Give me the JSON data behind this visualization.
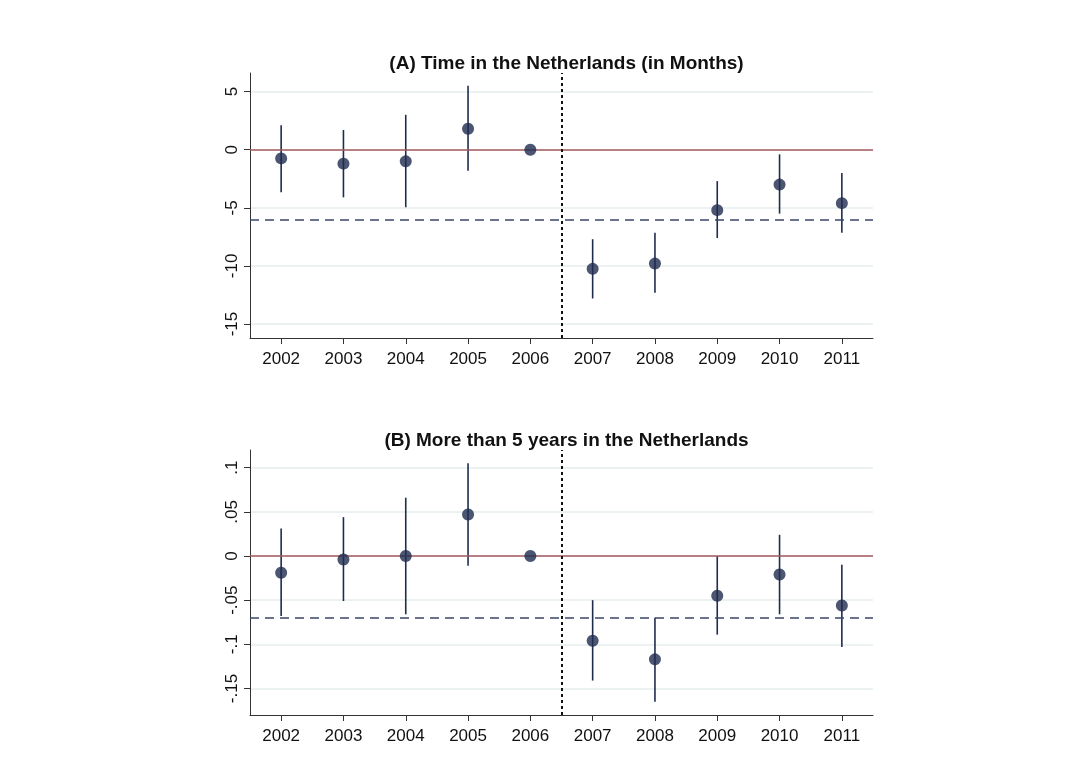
{
  "chart_data": [
    {
      "type": "scatter",
      "title": "(A) Time in the Netherlands (in Months)",
      "x": [
        2002,
        2003,
        2004,
        2005,
        2006,
        2007,
        2008,
        2009,
        2010,
        2011
      ],
      "values": [
        -0.75,
        -1.2,
        -1.0,
        1.8,
        0,
        -10.25,
        -9.8,
        -5.2,
        -3.0,
        -4.6
      ],
      "errors": [
        [
          -3.65,
          2.1
        ],
        [
          -4.1,
          1.7
        ],
        [
          -4.95,
          3.0
        ],
        [
          -1.8,
          5.5
        ],
        null,
        [
          -12.8,
          -7.7
        ],
        [
          -12.3,
          -7.15
        ],
        [
          -7.6,
          -2.7
        ],
        [
          -5.5,
          -0.4
        ],
        [
          -7.15,
          -2.0
        ]
      ],
      "color": "#1f2c4f",
      "marker": "circle",
      "xlim": [
        2001.5,
        2011.5
      ],
      "xticks": [
        2002,
        2003,
        2004,
        2005,
        2006,
        2007,
        2008,
        2009,
        2010,
        2011
      ],
      "ylim": [
        -16.2,
        6.6
      ],
      "yticks": [
        -15,
        -10,
        -5,
        0,
        5
      ],
      "grid": "y",
      "ref_lines": [
        {
          "axis": "y",
          "value": 0,
          "color": "#a55a5f",
          "line_style": "solid"
        },
        {
          "axis": "y",
          "value": -6,
          "color": "#3b4669",
          "line_style": "dashed"
        },
        {
          "axis": "x",
          "value": 2006.5,
          "color": "#111111",
          "line_style": "dotted"
        }
      ]
    },
    {
      "type": "scatter",
      "title": "(B) More than 5 years in the Netherlands",
      "x": [
        2002,
        2003,
        2004,
        2005,
        2006,
        2007,
        2008,
        2009,
        2010,
        2011
      ],
      "values": [
        -0.019,
        -0.004,
        0,
        0.047,
        0,
        -0.096,
        -0.117,
        -0.045,
        -0.021,
        -0.056
      ],
      "errors": [
        [
          -0.068,
          0.031
        ],
        [
          -0.051,
          0.044
        ],
        [
          -0.066,
          0.066
        ],
        [
          -0.011,
          0.105
        ],
        null,
        [
          -0.141,
          -0.05
        ],
        [
          -0.165,
          -0.07
        ],
        [
          -0.089,
          0
        ],
        [
          -0.066,
          0.024
        ],
        [
          -0.103,
          -0.01
        ]
      ],
      "color": "#1f2c4f",
      "marker": "circle",
      "xlim": [
        2001.5,
        2011.5
      ],
      "xticks": [
        2002,
        2003,
        2004,
        2005,
        2006,
        2007,
        2008,
        2009,
        2010,
        2011
      ],
      "ylim": [
        -0.18,
        0.12
      ],
      "yticks": [
        {
          "value": -0.15,
          "label": "-.15"
        },
        {
          "value": -0.1,
          "label": "-.1"
        },
        {
          "value": -0.05,
          "label": "-.05"
        },
        {
          "value": 0,
          "label": "0"
        },
        {
          "value": 0.05,
          "label": ".05"
        },
        {
          "value": 0.1,
          "label": ".1"
        }
      ],
      "grid": "y",
      "ref_lines": [
        {
          "axis": "y",
          "value": 0,
          "color": "#a55a5f",
          "line_style": "solid"
        },
        {
          "axis": "y",
          "value": -0.07,
          "color": "#3b4669",
          "line_style": "dashed"
        },
        {
          "axis": "x",
          "value": 2006.5,
          "color": "#111111",
          "line_style": "dotted"
        }
      ]
    }
  ]
}
